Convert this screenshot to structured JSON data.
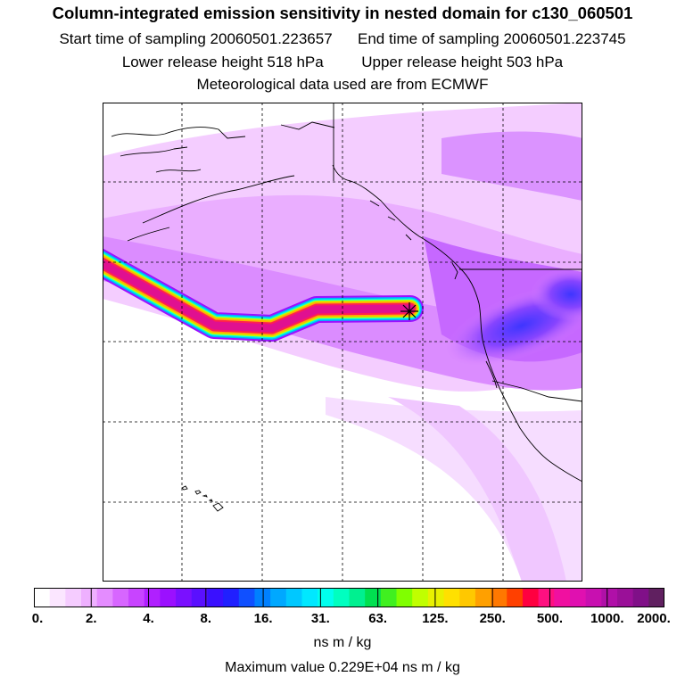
{
  "title": "Column-integrated emission sensitivity in nested domain for c130_060501",
  "start_label": "Start time of sampling 20060501.223657",
  "end_label": "End time of sampling 20060501.223745",
  "lower_label": "Lower release height  518 hPa",
  "upper_label": "Upper release height  503 hPa",
  "met_label": "Meteorological data used are from ECMWF",
  "colorbar": {
    "ticks": [
      "0.",
      "2.",
      "4.",
      "8.",
      "16.",
      "31.",
      "63.",
      "125.",
      "250.",
      "500.",
      "1000.",
      "2000."
    ],
    "units": "ns m / kg",
    "colors": [
      "#ffffff",
      "#fbe6ff",
      "#f5ccff",
      "#eeb0ff",
      "#e48cff",
      "#d766ff",
      "#c844ff",
      "#b020ff",
      "#9b10ff",
      "#7a10ff",
      "#5a10ff",
      "#3a10ff",
      "#2020ff",
      "#1050ff",
      "#0080ff",
      "#00a8ff",
      "#00c8ff",
      "#00e8ff",
      "#00ffee",
      "#00ffc0",
      "#00f090",
      "#00e050",
      "#40f020",
      "#80ff00",
      "#c0ff00",
      "#e8f000",
      "#ffe000",
      "#ffc800",
      "#ffa000",
      "#ff7800",
      "#ff4000",
      "#ff0040",
      "#ff1080",
      "#f010a0",
      "#e010b0",
      "#c810b0",
      "#b010a8",
      "#9a1098",
      "#801088",
      "#602060"
    ]
  },
  "max_value": "Maximum value  0.229E+04 ns m / kg",
  "map": {
    "release_marker": "release-point",
    "ocean_color": "#ffffff",
    "plume_color": "#e070ff",
    "core_color": "#2a20ff"
  }
}
